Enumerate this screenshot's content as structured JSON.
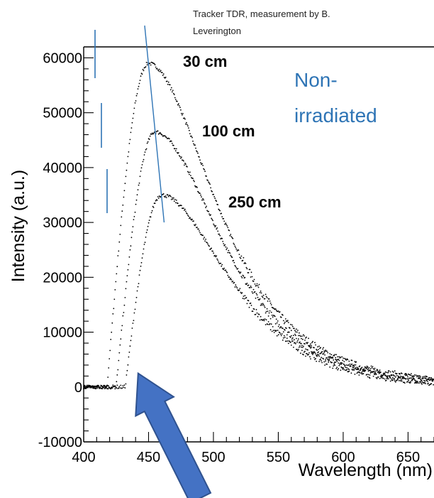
{
  "chart_data": {
    "type": "scatter",
    "xlabel": "Wavelength (nm)",
    "ylabel": "Intensity (a.u.)",
    "xlim": [
      400,
      670
    ],
    "ylim": [
      -10000,
      62000
    ],
    "x_ticks": [
      400,
      450,
      500,
      550,
      600,
      650
    ],
    "y_ticks": [
      -10000,
      0,
      10000,
      20000,
      30000,
      40000,
      50000,
      60000
    ],
    "x_tick_labels": [
      "400",
      "450",
      "500",
      "550",
      "600",
      "650"
    ],
    "y_tick_labels": [
      "-10000",
      "0",
      "10000",
      "20000",
      "30000",
      "40000",
      "50000",
      "60000"
    ],
    "grid": false,
    "series": [
      {
        "label": "30 cm",
        "onset_nm": 418,
        "peak_nm": 450,
        "peak": 59000,
        "baseline": 0
      },
      {
        "label": "100 cm",
        "onset_nm": 425,
        "peak_nm": 455,
        "peak": 46500,
        "baseline": 0
      },
      {
        "label": "250 cm",
        "onset_nm": 432,
        "peak_nm": 460,
        "peak": 35000,
        "baseline": 0
      }
    ],
    "peak_trend_line": {
      "from": [
        447,
        62000
      ],
      "to": [
        462,
        30000
      ],
      "color": "#2e74b5"
    },
    "annotations": {
      "credit": [
        "Tracker TDR, measurement by B.",
        "Leverington"
      ],
      "state": [
        "Non-",
        "irradiated"
      ]
    },
    "colors": {
      "points": "#000000",
      "accent": "#2e74b5",
      "arrow_fill": "#4472c4",
      "arrow_stroke": "#2f528f"
    }
  }
}
